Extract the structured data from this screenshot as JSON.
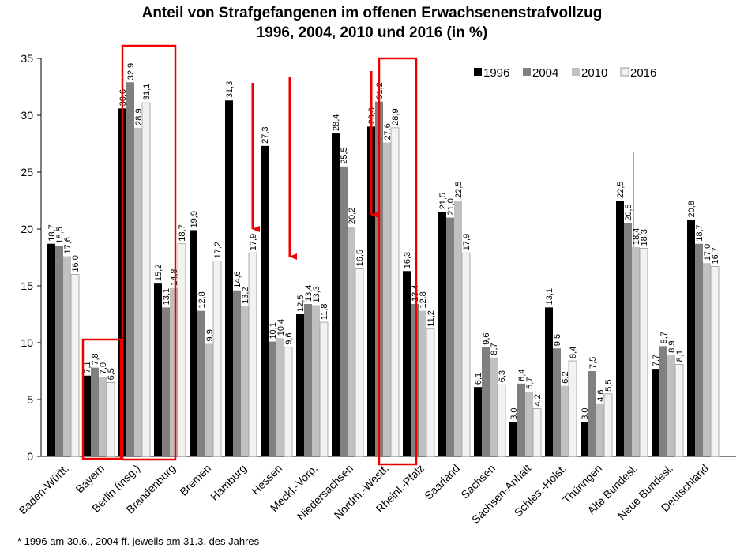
{
  "chart_data": {
    "type": "bar",
    "title": [
      "Anteil von Strafgefangenen  im offenen Erwachsenenstrafvollzug",
      "1996, 2004, 2010 und 2016 (in %)"
    ],
    "footnote": "* 1996 am 30.6., 2004 ff. jeweils am 31.3. des Jahres",
    "categories": [
      "Baden-Württ.",
      "Bayern",
      "Berlin (insg.)",
      "Brandenburg",
      "Bremen",
      "Hamburg",
      "Hessen",
      "Meckl.-Vorp.",
      "Niedersachsen",
      "Nordrh.-Westf.",
      "Rheinl.-Pfalz",
      "Saarland",
      "Sachsen",
      "Sachsen-Anhalt",
      "Schles.-Holst.",
      "Thüringen",
      "Alte Bundesl.",
      "Neue Bundesl.",
      "Deutschland"
    ],
    "series": [
      {
        "name": "1996",
        "color": "#000000",
        "values": [
          18.7,
          7.1,
          30.6,
          15.2,
          19.9,
          31.3,
          27.3,
          12.5,
          28.4,
          29.0,
          16.3,
          21.5,
          6.1,
          3.0,
          13.1,
          3.0,
          22.5,
          7.7,
          20.8
        ],
        "value_labels": [
          "18,7",
          "7,1",
          "30,6",
          "15,2",
          "19,9",
          "31,3",
          "27,3",
          "12,5",
          "28,4",
          "29,0",
          "16,3",
          "21,5",
          "6,1",
          "3,0",
          "13,1",
          "3,0",
          "22,5",
          "7,7",
          "20,8"
        ]
      },
      {
        "name": "2004",
        "color": "#808080",
        "values": [
          18.5,
          7.8,
          32.9,
          13.1,
          12.8,
          14.6,
          10.1,
          13.4,
          25.5,
          31.2,
          13.4,
          21.0,
          9.6,
          6.4,
          9.5,
          7.5,
          20.5,
          9.7,
          18.7
        ],
        "value_labels": [
          "18,5",
          "7,8",
          "32,9",
          "13,1",
          "12,8",
          "14,6",
          "10,1",
          "13,4",
          "25,5",
          "31,2",
          "13,4",
          "21,0",
          "9,6",
          "6,4",
          "9,5",
          "7,5",
          "20,5",
          "9,7",
          "18,7"
        ]
      },
      {
        "name": "2010",
        "color": "#c0c0c0",
        "values": [
          17.6,
          7.0,
          28.9,
          14.8,
          9.9,
          13.2,
          10.4,
          13.3,
          20.2,
          27.6,
          12.8,
          22.5,
          8.7,
          5.7,
          6.2,
          4.6,
          18.4,
          8.9,
          17.0
        ],
        "value_labels": [
          "17,6",
          "7,0",
          "28,9",
          "14,8",
          "9,9",
          "13,2",
          "10,4",
          "13,3",
          "20,2",
          "27,6",
          "12,8",
          "22,5",
          "8,7",
          "5,7",
          "6,2",
          "4,6",
          "18,4",
          "8,9",
          "17,0"
        ]
      },
      {
        "name": "2016",
        "color": "#f2f2f2",
        "values": [
          16.0,
          6.5,
          31.1,
          18.7,
          17.2,
          17.9,
          9.6,
          11.8,
          16.5,
          28.9,
          11.2,
          17.9,
          6.3,
          4.2,
          8.4,
          5.5,
          18.3,
          8.1,
          16.7
        ],
        "value_labels": [
          "16,0",
          "6,5",
          "31,1",
          "18,7",
          "17,2",
          "17,9",
          "9,6",
          "11,8",
          "16,5",
          "28,9",
          "11,2",
          "17,9",
          "6,3",
          "4,2",
          "8,4",
          "5,5",
          "18,3",
          "8,1",
          "16,7"
        ]
      }
    ],
    "ylim": [
      0,
      35
    ],
    "yticks": [
      0,
      5,
      10,
      15,
      20,
      25,
      30,
      35
    ],
    "grid": false,
    "legend": "top-right"
  }
}
